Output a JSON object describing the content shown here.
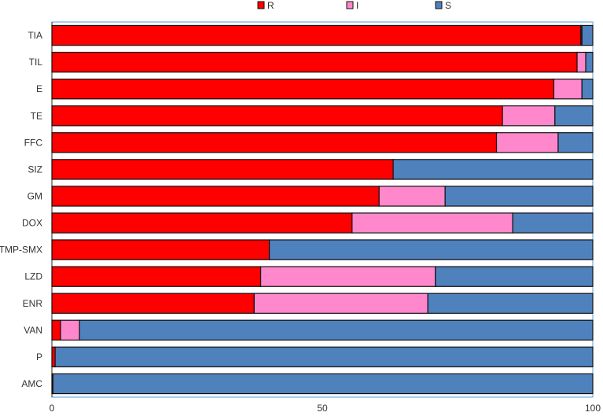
{
  "chart_data": {
    "type": "bar",
    "orientation": "horizontal",
    "stacked": true,
    "categories": [
      "TIA",
      "TIL",
      "E",
      "TE",
      "FFC",
      "SIZ",
      "GM",
      "DOX",
      "TMP-SMX",
      "LZD",
      "ENR",
      "VAN",
      "P",
      "AMC"
    ],
    "series": [
      {
        "name": "R",
        "color": "#ff0000",
        "values": [
          97.8,
          97.1,
          92.8,
          83.3,
          82.2,
          63.1,
          60.5,
          55.5,
          40.2,
          38.6,
          37.4,
          1.6,
          0.6,
          0.2
        ]
      },
      {
        "name": "I",
        "color": "#ff88cc",
        "values": [
          0.2,
          1.6,
          5.2,
          9.7,
          11.4,
          0.0,
          12.2,
          29.7,
          0.0,
          32.3,
          32.1,
          3.5,
          0.0,
          0.0
        ]
      },
      {
        "name": "S",
        "color": "#4f81bd",
        "values": [
          2.0,
          1.3,
          2.0,
          7.0,
          6.4,
          36.9,
          27.3,
          14.8,
          59.8,
          29.1,
          30.5,
          94.9,
          99.4,
          99.8
        ]
      }
    ],
    "xlim": [
      0,
      100
    ],
    "xticks": [
      0,
      50,
      100
    ],
    "legend_position": "top",
    "title": "",
    "xlabel": "",
    "ylabel": ""
  }
}
